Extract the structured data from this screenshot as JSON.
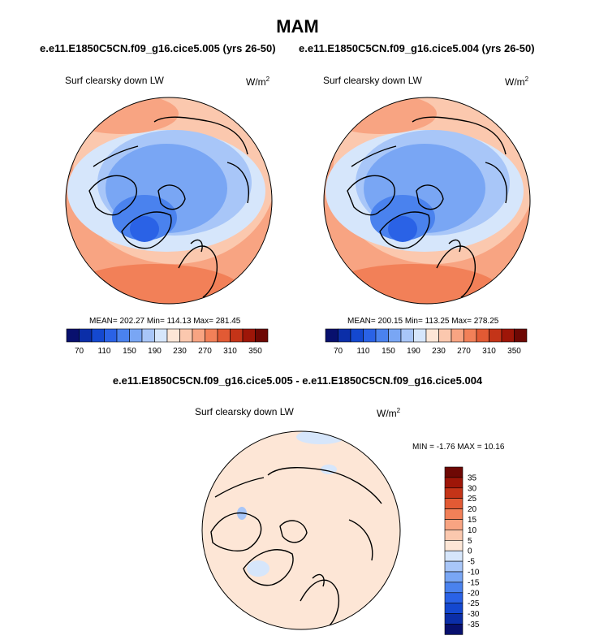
{
  "figure": {
    "title": "MAM",
    "diff_title": "e.e11.E1850C5CN.f09_g16.cice5.005 - e.e11.E1850C5CN.f09_g16.cice5.004"
  },
  "colors": {
    "abs_palette": [
      "#08106e",
      "#0b2ea8",
      "#1448d0",
      "#2a62e6",
      "#4a82ee",
      "#79a6f4",
      "#a8c6f8",
      "#d6e6fb",
      "#fde6d6",
      "#fbc8ae",
      "#f8a482",
      "#f28058",
      "#e25a34",
      "#c43418",
      "#9e1608",
      "#6e0804"
    ],
    "diff_palette": [
      "#08106e",
      "#0b2ea8",
      "#1448d0",
      "#2a62e6",
      "#4a82ee",
      "#79a6f4",
      "#a8c6f8",
      "#d6e6fb",
      "#fde6d6",
      "#fbc8ae",
      "#f8a482",
      "#f28058",
      "#e25a34",
      "#c43418",
      "#9e1608",
      "#6e0804"
    ]
  },
  "chart_data": [
    {
      "type": "heatmap",
      "title": "e.e11.E1850C5CN.f09_g16.cice5.005 (yrs 26-50)",
      "variable": "Surf clearsky down LW",
      "units": "W/m",
      "units_exp": "2",
      "stats": {
        "mean": 202.27,
        "min": 114.13,
        "max": 281.45
      },
      "stats_text": "MEAN= 202.27  Min= 114.13  Max= 281.45",
      "colorbar_levels": [
        70,
        90,
        110,
        130,
        150,
        170,
        190,
        210,
        230,
        250,
        270,
        290,
        310,
        330,
        350
      ],
      "colorbar_labels": [
        "70",
        "110",
        "150",
        "190",
        "230",
        "270",
        "310",
        "350"
      ]
    },
    {
      "type": "heatmap",
      "title": "e.e11.E1850C5CN.f09_g16.cice5.004 (yrs 26-50)",
      "variable": "Surf clearsky down LW",
      "units": "W/m",
      "units_exp": "2",
      "stats": {
        "mean": 200.15,
        "min": 113.25,
        "max": 278.25
      },
      "stats_text": "MEAN= 200.15  Min= 113.25  Max= 278.25",
      "colorbar_levels": [
        70,
        90,
        110,
        130,
        150,
        170,
        190,
        210,
        230,
        250,
        270,
        290,
        310,
        330,
        350
      ],
      "colorbar_labels": [
        "70",
        "110",
        "150",
        "190",
        "230",
        "270",
        "310",
        "350"
      ]
    },
    {
      "type": "heatmap",
      "title": "e.e11.E1850C5CN.f09_g16.cice5.005 - e.e11.E1850C5CN.f09_g16.cice5.004",
      "variable": "Surf clearsky down LW",
      "units": "W/m",
      "units_exp": "2",
      "stats": {
        "min": -1.76,
        "max": 10.16
      },
      "stats_text": "MIN =  -1.76 MAX =  10.16",
      "colorbar_levels": [
        -35,
        -30,
        -25,
        -20,
        -15,
        -10,
        -5,
        0,
        5,
        10,
        15,
        20,
        25,
        30,
        35
      ],
      "colorbar_labels": [
        "35",
        "30",
        "25",
        "20",
        "15",
        "10",
        "5",
        "0",
        "-5",
        "-10",
        "-15",
        "-20",
        "-25",
        "-30",
        "-35"
      ]
    }
  ]
}
